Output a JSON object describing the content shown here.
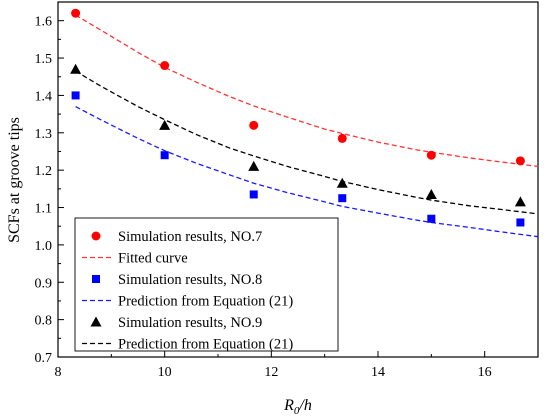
{
  "chart_data": {
    "type": "scatter",
    "xlabel": "R",
    "xlabel_sub": "0",
    "xlabel_suffix": "/h",
    "ylabel": "SCFs at  groove tips",
    "xlim": [
      8,
      17
    ],
    "ylim": [
      0.7,
      1.65
    ],
    "xticks": [
      8,
      10,
      12,
      14,
      16
    ],
    "xtick_labels": [
      "8",
      "10",
      "12",
      "14",
      "16"
    ],
    "yticks": [
      0.7,
      0.8,
      0.9,
      1.0,
      1.1,
      1.2,
      1.3,
      1.4,
      1.5,
      1.6
    ],
    "ytick_labels": [
      "0.7",
      "0.8",
      "0.9",
      "1.0",
      "1.1",
      "1.2",
      "1.3",
      "1.4",
      "1.5",
      "1.6"
    ],
    "grid": false,
    "legend_position": "lower-left",
    "series": [
      {
        "name": "Simulation results, NO.7",
        "kind": "marker",
        "marker": "circle",
        "color": "#ff0000",
        "x": [
          8.33,
          10.0,
          11.67,
          13.33,
          15.0,
          16.67
        ],
        "y": [
          1.62,
          1.48,
          1.32,
          1.285,
          1.24,
          1.225
        ]
      },
      {
        "name": "Fitted curve",
        "kind": "dashed-line",
        "color": "#ff3333",
        "x": [
          8.33,
          8.8,
          9.5,
          10.0,
          10.6,
          11.2,
          11.67,
          12.3,
          13.0,
          13.33,
          14.0,
          14.7,
          15.0,
          15.7,
          16.3,
          17.0
        ],
        "y": [
          1.615,
          1.575,
          1.515,
          1.475,
          1.435,
          1.398,
          1.372,
          1.342,
          1.31,
          1.298,
          1.275,
          1.255,
          1.248,
          1.233,
          1.222,
          1.21
        ]
      },
      {
        "name": "Simulation results, NO.8",
        "kind": "marker",
        "marker": "square",
        "color": "#0000ff",
        "x": [
          8.33,
          10.0,
          11.67,
          13.33,
          15.0,
          16.67
        ],
        "y": [
          1.4,
          1.24,
          1.135,
          1.125,
          1.07,
          1.06
        ]
      },
      {
        "name": "Prediction from Equation (21)",
        "kind": "dashed-line",
        "color": "#1a1aff",
        "x": [
          8.33,
          8.8,
          9.5,
          10.0,
          10.6,
          11.2,
          11.67,
          12.3,
          13.0,
          13.33,
          14.0,
          14.7,
          15.0,
          15.7,
          16.3,
          17.0
        ],
        "y": [
          1.37,
          1.335,
          1.285,
          1.252,
          1.218,
          1.188,
          1.165,
          1.14,
          1.115,
          1.103,
          1.085,
          1.067,
          1.06,
          1.047,
          1.035,
          1.022
        ]
      },
      {
        "name": "Simulation results, NO.9",
        "kind": "marker",
        "marker": "triangle",
        "color": "#000000",
        "x": [
          8.33,
          10.0,
          11.67,
          13.33,
          15.0,
          16.67
        ],
        "y": [
          1.47,
          1.32,
          1.21,
          1.165,
          1.135,
          1.115
        ]
      },
      {
        "name": "Prediction from Equation (21)",
        "kind": "dashed-line",
        "color": "#000000",
        "x": [
          8.33,
          8.8,
          9.5,
          10.0,
          10.6,
          11.2,
          11.67,
          12.3,
          13.0,
          13.33,
          14.0,
          14.7,
          15.0,
          15.7,
          16.3,
          17.0
        ],
        "y": [
          1.465,
          1.425,
          1.37,
          1.335,
          1.295,
          1.26,
          1.238,
          1.21,
          1.183,
          1.17,
          1.148,
          1.128,
          1.12,
          1.105,
          1.095,
          1.083
        ]
      }
    ]
  }
}
